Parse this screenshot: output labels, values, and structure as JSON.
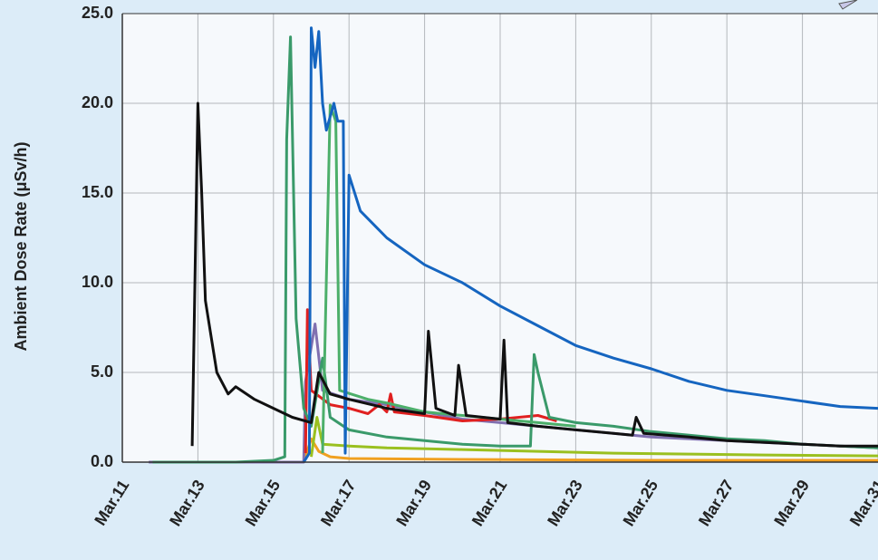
{
  "chart_data": {
    "type": "line",
    "ylabel": "Ambient Dose Rate (μSv/h)",
    "xlim": [
      11,
      31
    ],
    "xticks": [
      {
        "value": 11,
        "label": "Mar.11"
      },
      {
        "value": 13,
        "label": "Mar.13"
      },
      {
        "value": 15,
        "label": "Mar.15"
      },
      {
        "value": 17,
        "label": "Mar.17"
      },
      {
        "value": 19,
        "label": "Mar.19"
      },
      {
        "value": 21,
        "label": "Mar.21"
      },
      {
        "value": 23,
        "label": "Mar.23"
      },
      {
        "value": 25,
        "label": "Mar.25"
      },
      {
        "value": 27,
        "label": "Mar.27"
      },
      {
        "value": 29,
        "label": "Mar.29"
      },
      {
        "value": 31,
        "label": "Mar.31"
      }
    ],
    "ylim": [
      0,
      25
    ],
    "yticks": [
      {
        "value": 0,
        "label": "0.0"
      },
      {
        "value": 5,
        "label": "5.0"
      },
      {
        "value": 10,
        "label": "10.0"
      },
      {
        "value": 15,
        "label": "15.0"
      },
      {
        "value": 20,
        "label": "20.0"
      },
      {
        "value": 25,
        "label": "25.0"
      }
    ],
    "grid": true,
    "series": [
      {
        "color": "#f0a020",
        "x": [
          15.8,
          16.0,
          16.2,
          16.5,
          17,
          20,
          25,
          31
        ],
        "values": [
          0,
          1.3,
          0.6,
          0.3,
          0.2,
          0.15,
          0.1,
          0.1
        ]
      },
      {
        "color": "#9ac020",
        "x": [
          16.0,
          16.15,
          16.3,
          17,
          18,
          20,
          22,
          24,
          26,
          28,
          31
        ],
        "values": [
          0.3,
          2.5,
          1.0,
          0.9,
          0.8,
          0.7,
          0.6,
          0.5,
          0.45,
          0.4,
          0.35
        ]
      },
      {
        "color": "#8070b0",
        "x": [
          11.7,
          15.8,
          15.85,
          16.1,
          16.3,
          17,
          18,
          19,
          20,
          21,
          22,
          23,
          24,
          25,
          26,
          27,
          28,
          29,
          30,
          31
        ],
        "values": [
          0,
          0,
          4.5,
          7.7,
          4,
          3.5,
          3.2,
          2.8,
          2.4,
          2.2,
          2.0,
          1.8,
          1.6,
          1.4,
          1.3,
          1.2,
          1.1,
          1.0,
          0.9,
          0.8
        ]
      },
      {
        "color": "#e02020",
        "x": [
          15.85,
          15.9,
          16,
          16.5,
          17,
          17.5,
          17.8,
          18,
          18.1,
          18.2,
          19,
          20,
          21,
          22,
          22.5
        ],
        "values": [
          0.5,
          8.5,
          4,
          3.2,
          3.0,
          2.7,
          3.2,
          2.8,
          3.8,
          2.8,
          2.6,
          2.3,
          2.4,
          2.6,
          2.3
        ]
      },
      {
        "color": "#3a9a6a",
        "x": [
          11.8,
          14,
          15,
          15.3,
          15.35,
          15.45,
          15.6,
          15.8,
          16,
          16.3,
          16.5,
          17,
          18,
          19,
          20,
          21,
          21.8,
          21.9,
          22.0,
          22.3,
          23,
          24,
          25,
          26,
          27,
          28,
          29,
          30,
          31
        ],
        "values": [
          0,
          0,
          0.1,
          0.3,
          18,
          23.7,
          8,
          3,
          2,
          5.8,
          2.5,
          1.8,
          1.4,
          1.2,
          1.0,
          0.9,
          0.9,
          6,
          5,
          2.5,
          2.2,
          2.0,
          1.7,
          1.5,
          1.3,
          1.2,
          1.0,
          0.9,
          0.8
        ]
      },
      {
        "color": "#4caf6a",
        "x": [
          16.3,
          16.5,
          16.65,
          16.75,
          17.5,
          18,
          19,
          20,
          21,
          22,
          23
        ],
        "values": [
          0.5,
          19.9,
          19,
          4,
          3.5,
          3.3,
          2.8,
          2.6,
          2.4,
          2.2,
          2.0
        ]
      },
      {
        "color": "#1565c0",
        "x": [
          15.8,
          15.95,
          16.0,
          16.1,
          16.2,
          16.3,
          16.4,
          16.6,
          16.7,
          16.85,
          16.9,
          17.0,
          17.3,
          18,
          19,
          20,
          21,
          22,
          23,
          24,
          25,
          26,
          27,
          28,
          29,
          30,
          31
        ],
        "values": [
          0,
          0.5,
          24.2,
          22,
          24,
          20,
          18.5,
          20,
          19,
          19,
          0.5,
          16,
          14,
          12.5,
          11,
          10,
          8.7,
          7.6,
          6.5,
          5.8,
          5.2,
          4.5,
          4.0,
          3.7,
          3.4,
          3.1,
          3.0
        ]
      },
      {
        "color": "#111111",
        "x": [
          12.85,
          13.0,
          13.1,
          13.2,
          13.5,
          13.8,
          14,
          14.5,
          15,
          15.5,
          16,
          16.2,
          16.5,
          17,
          18,
          19,
          19.1,
          19.3,
          19.8,
          19.9,
          20.1,
          21,
          21.1,
          21.2,
          22,
          23,
          24,
          24.5,
          24.6,
          24.8,
          26,
          27,
          28,
          29,
          30,
          31
        ],
        "values": [
          0.9,
          20,
          15,
          9,
          5,
          3.8,
          4.2,
          3.5,
          3,
          2.5,
          2.2,
          5,
          3.8,
          3.5,
          3.0,
          2.7,
          7.3,
          3,
          2.6,
          5.4,
          2.6,
          2.4,
          6.8,
          2.2,
          2.0,
          1.8,
          1.6,
          1.5,
          2.5,
          1.6,
          1.4,
          1.2,
          1.1,
          1.0,
          0.9,
          0.9
        ]
      }
    ]
  }
}
